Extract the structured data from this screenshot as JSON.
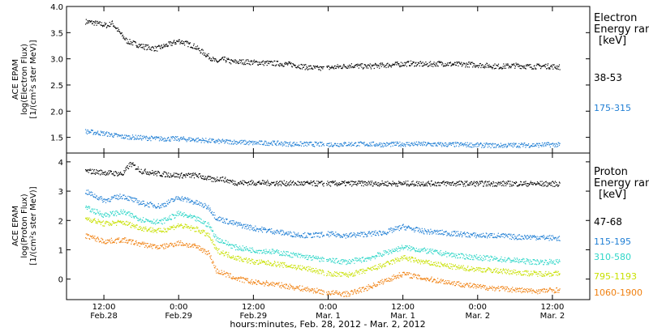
{
  "chart_data": [
    {
      "type": "scatter",
      "panel": "electron",
      "ylabel": [
        "ACE EPAM",
        "log(Electron Flux)",
        "[1/(cm²s ster MeV)]"
      ],
      "ylim": [
        1.2,
        4.0
      ],
      "yticks": [
        "1.5",
        "2.0",
        "2.5",
        "3.0",
        "3.5",
        "4.0"
      ],
      "ytick_values": [
        1.5,
        2.0,
        2.5,
        3.0,
        3.5,
        4.0
      ],
      "legend_title": [
        "Electron",
        "Energy ran",
        "[keV]"
      ],
      "series": [
        {
          "name": "38-53",
          "color": "#000000",
          "x": [
            0.25,
            0.35,
            0.45,
            0.55,
            0.6,
            0.7,
            0.8,
            0.9,
            1.0,
            1.1,
            1.2,
            1.3,
            1.4,
            1.5,
            1.6,
            1.7,
            1.8,
            1.9,
            2.0,
            2.1,
            2.2,
            2.4,
            2.6,
            2.8,
            3.0,
            3.2,
            3.4,
            3.6,
            3.8,
            4.0,
            4.2,
            4.4,
            4.6,
            4.8,
            5.0,
            5.2,
            5.4,
            5.6,
            5.8,
            6.0,
            6.2,
            6.4,
            6.6
          ],
          "y": [
            3.72,
            3.7,
            3.67,
            3.64,
            3.7,
            3.52,
            3.35,
            3.3,
            3.25,
            3.22,
            3.2,
            3.25,
            3.3,
            3.35,
            3.3,
            3.25,
            3.15,
            3.05,
            2.95,
            3.0,
            2.95,
            2.95,
            2.93,
            2.92,
            2.9,
            2.85,
            2.82,
            2.85,
            2.88,
            2.86,
            2.88,
            2.9,
            2.92,
            2.9,
            2.92,
            2.9,
            2.9,
            2.88,
            2.86,
            2.88,
            2.86,
            2.87,
            2.85
          ]
        },
        {
          "name": "175-315",
          "color": "#1f7ed4",
          "x": [
            0.25,
            0.5,
            0.75,
            1.0,
            1.25,
            1.5,
            1.75,
            2.0,
            2.25,
            2.5,
            2.75,
            3.0,
            3.25,
            3.5,
            3.75,
            4.0,
            4.25,
            4.5,
            4.75,
            5.0,
            5.25,
            5.5,
            5.75,
            6.0,
            6.25,
            6.5,
            6.6
          ],
          "y": [
            1.62,
            1.58,
            1.52,
            1.5,
            1.48,
            1.48,
            1.46,
            1.43,
            1.42,
            1.4,
            1.4,
            1.38,
            1.38,
            1.37,
            1.38,
            1.38,
            1.37,
            1.38,
            1.38,
            1.37,
            1.37,
            1.36,
            1.35,
            1.36,
            1.36,
            1.37,
            1.36
          ]
        }
      ]
    },
    {
      "type": "scatter",
      "panel": "proton",
      "ylabel": [
        "ACE EPAM",
        "log(Proton Flux)",
        "[1/(cm²s ster MeV)]"
      ],
      "ylim": [
        -0.7,
        4.3
      ],
      "yticks": [
        "0",
        "1",
        "2",
        "3",
        "4"
      ],
      "ytick_values": [
        0,
        1,
        2,
        3,
        4
      ],
      "legend_title": [
        "Proton",
        "Energy ran",
        "[keV]"
      ],
      "series": [
        {
          "name": "47-68",
          "color": "#000000",
          "x": [
            0.25,
            0.5,
            0.75,
            0.85,
            1.0,
            1.25,
            1.5,
            1.75,
            1.95,
            2.05,
            2.25,
            2.5,
            3.0,
            3.5,
            4.0,
            4.5,
            5.0,
            5.5,
            6.0,
            6.6
          ],
          "y": [
            3.7,
            3.65,
            3.6,
            3.95,
            3.7,
            3.6,
            3.55,
            3.55,
            3.4,
            3.45,
            3.3,
            3.3,
            3.28,
            3.27,
            3.28,
            3.27,
            3.28,
            3.27,
            3.27,
            3.26
          ]
        },
        {
          "name": "115-195",
          "color": "#1f7ed4",
          "x": [
            0.25,
            0.5,
            0.75,
            1.0,
            1.25,
            1.5,
            1.75,
            1.9,
            2.0,
            2.25,
            2.5,
            2.75,
            3.0,
            3.25,
            3.5,
            3.75,
            4.0,
            4.25,
            4.5,
            4.75,
            5.0,
            5.25,
            5.5,
            5.75,
            6.0,
            6.25,
            6.6
          ],
          "y": [
            3.0,
            2.7,
            2.85,
            2.6,
            2.5,
            2.8,
            2.6,
            2.45,
            2.1,
            1.9,
            1.75,
            1.65,
            1.55,
            1.5,
            1.55,
            1.5,
            1.55,
            1.6,
            1.8,
            1.65,
            1.6,
            1.55,
            1.5,
            1.5,
            1.45,
            1.45,
            1.4
          ]
        },
        {
          "name": "310-580",
          "color": "#2fd6c8",
          "x": [
            0.25,
            0.5,
            0.75,
            1.0,
            1.25,
            1.5,
            1.75,
            1.9,
            2.0,
            2.25,
            2.5,
            2.75,
            3.0,
            3.25,
            3.5,
            3.75,
            4.0,
            4.25,
            4.5,
            4.75,
            5.0,
            5.25,
            5.5,
            5.75,
            6.0,
            6.25,
            6.6
          ],
          "y": [
            2.45,
            2.2,
            2.3,
            2.05,
            1.95,
            2.25,
            2.05,
            1.85,
            1.4,
            1.1,
            1.0,
            0.95,
            0.85,
            0.75,
            0.65,
            0.6,
            0.7,
            0.9,
            1.1,
            1.0,
            0.9,
            0.8,
            0.75,
            0.7,
            0.65,
            0.6,
            0.6
          ]
        },
        {
          "name": "795-1193",
          "color": "#c8e000",
          "x": [
            0.25,
            0.5,
            0.75,
            1.0,
            1.25,
            1.5,
            1.75,
            1.9,
            2.0,
            2.25,
            2.5,
            2.75,
            3.0,
            3.25,
            3.5,
            3.75,
            4.0,
            4.25,
            4.5,
            4.75,
            5.0,
            5.25,
            5.5,
            5.75,
            6.0,
            6.25,
            6.6
          ],
          "y": [
            2.1,
            1.9,
            1.95,
            1.75,
            1.65,
            1.85,
            1.7,
            1.5,
            1.0,
            0.75,
            0.6,
            0.55,
            0.45,
            0.35,
            0.2,
            0.15,
            0.3,
            0.5,
            0.75,
            0.6,
            0.5,
            0.4,
            0.35,
            0.3,
            0.25,
            0.2,
            0.2
          ]
        },
        {
          "name": "1060-1900",
          "color": "#f08010",
          "x": [
            0.25,
            0.5,
            0.75,
            1.0,
            1.25,
            1.5,
            1.75,
            1.9,
            2.0,
            2.25,
            2.5,
            2.75,
            3.0,
            3.25,
            3.5,
            3.75,
            4.0,
            4.25,
            4.5,
            4.75,
            5.0,
            5.25,
            5.5,
            5.75,
            6.0,
            6.25,
            6.6
          ],
          "y": [
            1.5,
            1.3,
            1.35,
            1.2,
            1.1,
            1.25,
            1.1,
            0.9,
            0.3,
            0.05,
            -0.1,
            -0.15,
            -0.25,
            -0.35,
            -0.45,
            -0.5,
            -0.3,
            -0.05,
            0.2,
            0.05,
            -0.05,
            -0.15,
            -0.25,
            -0.3,
            -0.35,
            -0.4,
            -0.35
          ]
        }
      ]
    }
  ],
  "xaxis": {
    "xlim": [
      0,
      7.0
    ],
    "ticks": [
      {
        "x": 0.5,
        "line1": "12:00",
        "line2": "Feb.28"
      },
      {
        "x": 1.5,
        "line1": "0:00",
        "line2": "Feb.29"
      },
      {
        "x": 2.5,
        "line1": "12:00",
        "line2": "Feb.29"
      },
      {
        "x": 3.5,
        "line1": "0:00",
        "line2": "Mar. 1"
      },
      {
        "x": 4.5,
        "line1": "12:00",
        "line2": "Mar. 1"
      },
      {
        "x": 5.5,
        "line1": "0:00",
        "line2": "Mar. 2"
      },
      {
        "x": 6.5,
        "line1": "12:00",
        "line2": "Mar. 2"
      }
    ],
    "xlabel": "hours:minutes, Feb. 28, 2012 - Mar. 2, 2012"
  }
}
